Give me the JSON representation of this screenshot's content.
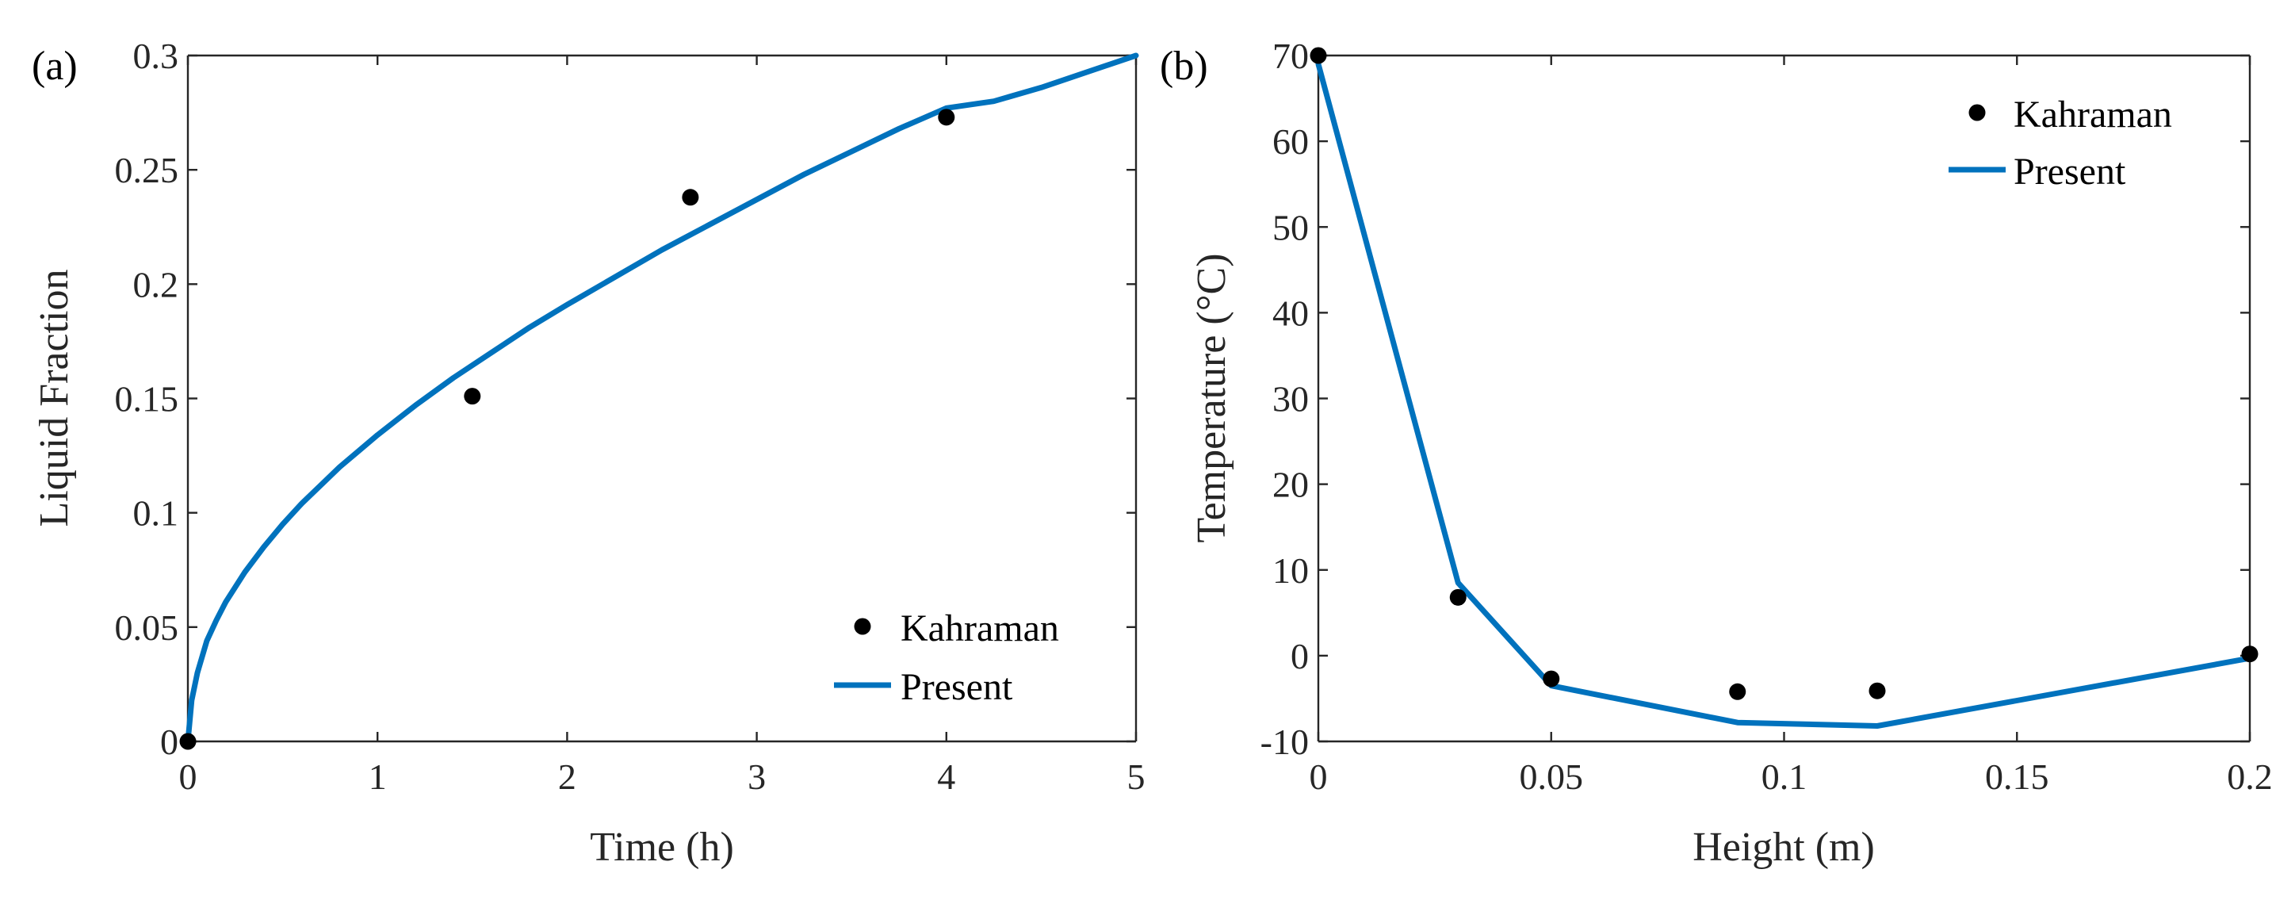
{
  "colors": {
    "line": "#0072BD",
    "marker": "#000000",
    "axis": "#262626"
  },
  "chart_data": [
    {
      "type": "line",
      "panel_label": "(a)",
      "title": "",
      "xlabel": "Time (h)",
      "ylabel": "Liquid  Fraction",
      "xlim": [
        0,
        5
      ],
      "ylim": [
        0,
        0.3
      ],
      "xticks": [
        0,
        1,
        2,
        3,
        4,
        5
      ],
      "xtick_labels": [
        "0",
        "1",
        "2",
        "3",
        "4",
        "5"
      ],
      "yticks": [
        0,
        0.05,
        0.1,
        0.15,
        0.2,
        0.25,
        0.3
      ],
      "ytick_labels": [
        "0",
        "0.05",
        "0.1",
        "0.15",
        "0.2",
        "0.25",
        "0.3"
      ],
      "grid": false,
      "legend_position": "bottom-right",
      "series": [
        {
          "name": "Kahraman",
          "kind": "scatter",
          "x": [
            0,
            1.5,
            2.65,
            4.0
          ],
          "y": [
            0,
            0.151,
            0.238,
            0.273
          ]
        },
        {
          "name": "Present",
          "kind": "line",
          "x": [
            0,
            0.02,
            0.05,
            0.1,
            0.15,
            0.2,
            0.3,
            0.4,
            0.5,
            0.6,
            0.7,
            0.8,
            0.9,
            1.0,
            1.2,
            1.4,
            1.6,
            1.8,
            2.0,
            2.25,
            2.5,
            2.75,
            3.0,
            3.25,
            3.5,
            3.75,
            4.0,
            4.25,
            4.5,
            4.75,
            5.0
          ],
          "y": [
            0,
            0.018,
            0.03,
            0.044,
            0.053,
            0.061,
            0.074,
            0.085,
            0.095,
            0.104,
            0.112,
            0.12,
            0.127,
            0.134,
            0.147,
            0.159,
            0.17,
            0.181,
            0.191,
            0.203,
            0.215,
            0.226,
            0.237,
            0.248,
            0.258,
            0.268,
            0.277,
            0.28,
            0.286,
            0.293,
            0.3
          ]
        }
      ]
    },
    {
      "type": "line",
      "panel_label": "(b)",
      "title": "",
      "xlabel": "Height (m)",
      "ylabel": "Temperature (°C)",
      "xlim": [
        0,
        0.2
      ],
      "ylim": [
        -10,
        70
      ],
      "xticks": [
        0,
        0.05,
        0.1,
        0.15,
        0.2
      ],
      "xtick_labels": [
        "0",
        "0.05",
        "0.1",
        "0.15",
        "0.2"
      ],
      "yticks": [
        -10,
        0,
        10,
        20,
        30,
        40,
        50,
        60,
        70
      ],
      "ytick_labels": [
        "-10",
        "0",
        "10",
        "20",
        "30",
        "40",
        "50",
        "60",
        "70"
      ],
      "grid": false,
      "legend_position": "top-right",
      "series": [
        {
          "name": "Kahraman",
          "kind": "scatter",
          "x": [
            0,
            0.03,
            0.05,
            0.09,
            0.12,
            0.2
          ],
          "y": [
            70,
            6.8,
            -2.7,
            -4.2,
            -4.1,
            0.2
          ]
        },
        {
          "name": "Present",
          "kind": "line",
          "x": [
            0,
            0.03,
            0.05,
            0.09,
            0.12,
            0.2
          ],
          "y": [
            69,
            8.5,
            -3.5,
            -7.8,
            -8.2,
            -0.3
          ]
        }
      ]
    }
  ]
}
